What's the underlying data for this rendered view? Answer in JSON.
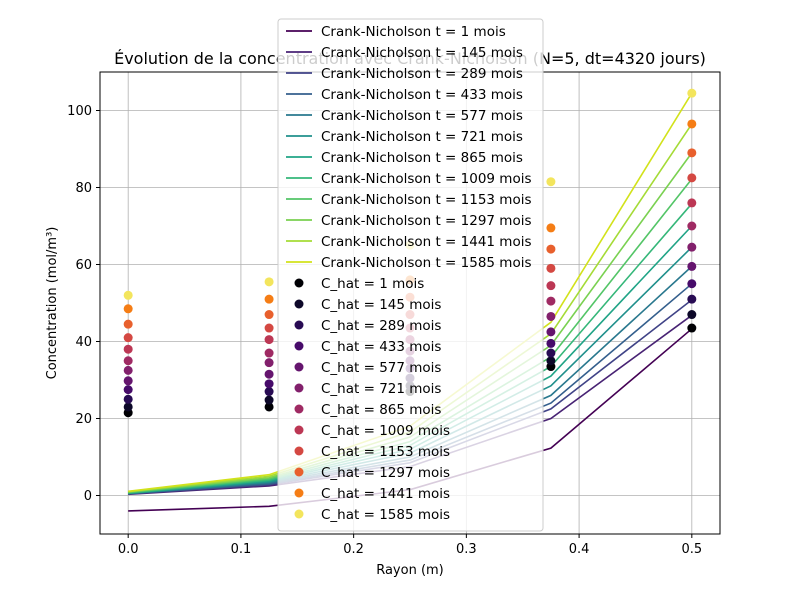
{
  "chart_data": {
    "type": "line",
    "title": "Évolution de la concentration avec Crank-Nicholson (N=5, dt=4320 jours)",
    "xlabel": "Rayon (m)",
    "ylabel": "Concentration (mol/m³)",
    "xlim": [
      -0.025,
      0.525
    ],
    "ylim": [
      -10,
      110
    ],
    "xticks": [
      0.0,
      0.1,
      0.2,
      0.3,
      0.4,
      0.5
    ],
    "xtick_labels": [
      "0.0",
      "0.1",
      "0.2",
      "0.3",
      "0.4",
      "0.5"
    ],
    "yticks": [
      0,
      20,
      40,
      60,
      80,
      100
    ],
    "ytick_labels": [
      "0",
      "20",
      "40",
      "60",
      "80",
      "100"
    ],
    "grid": true,
    "legend_position": "top-center (overlapping plot)",
    "x": [
      0.0,
      0.125,
      0.25,
      0.375,
      0.5
    ],
    "line_series": [
      {
        "name": "Crank-Nicholson t = 1 mois",
        "color": "#440154",
        "values": [
          -4.0,
          -2.8,
          1.5,
          12.3,
          43.3
        ]
      },
      {
        "name": "Crank-Nicholson t = 145 mois",
        "color": "#482374",
        "values": [
          0.3,
          2.5,
          7.5,
          20.0,
          46.8
        ]
      },
      {
        "name": "Crank-Nicholson t = 289 mois",
        "color": "#404387",
        "values": [
          0.4,
          2.8,
          8.5,
          22.5,
          50.8
        ]
      },
      {
        "name": "Crank-Nicholson t = 433 mois",
        "color": "#345f8d",
        "values": [
          0.5,
          3.0,
          9.2,
          24.0,
          55.0
        ]
      },
      {
        "name": "Crank-Nicholson t = 577 mois",
        "color": "#29788e",
        "values": [
          0.5,
          3.3,
          10.0,
          26.0,
          59.5
        ]
      },
      {
        "name": "Crank-Nicholson t = 721 mois",
        "color": "#20908c",
        "values": [
          0.6,
          3.5,
          11.0,
          28.5,
          64.5
        ]
      },
      {
        "name": "Crank-Nicholson t = 865 mois",
        "color": "#20a486",
        "values": [
          0.6,
          3.8,
          12.0,
          31.0,
          70.0
        ]
      },
      {
        "name": "Crank-Nicholson t = 1009 mois",
        "color": "#35b779",
        "values": [
          0.7,
          4.0,
          13.0,
          33.5,
          75.8
        ]
      },
      {
        "name": "Crank-Nicholson t = 1153 mois",
        "color": "#53c567",
        "values": [
          0.8,
          4.3,
          14.0,
          36.0,
          82.2
        ]
      },
      {
        "name": "Crank-Nicholson t = 1297 mois",
        "color": "#7ad151",
        "values": [
          0.9,
          4.6,
          15.2,
          39.0,
          89.0
        ]
      },
      {
        "name": "Crank-Nicholson t = 1441 mois",
        "color": "#a5db36",
        "values": [
          1.0,
          5.0,
          16.5,
          42.0,
          96.5
        ]
      },
      {
        "name": "Crank-Nicholson t = 1585 mois",
        "color": "#d2e21b",
        "values": [
          1.1,
          5.4,
          18.0,
          45.0,
          104.5
        ]
      }
    ],
    "scatter_series": [
      {
        "name": "C_hat = 1 mois",
        "color": "#000004",
        "values": [
          21.5,
          23.0,
          27.0,
          33.5,
          43.5
        ]
      },
      {
        "name": "C_hat = 145 mois",
        "color": "#0d0829",
        "values": [
          23.0,
          24.8,
          28.5,
          35.0,
          47.0
        ]
      },
      {
        "name": "C_hat = 289 mois",
        "color": "#280b53",
        "values": [
          25.0,
          27.0,
          30.5,
          37.0,
          51.0
        ]
      },
      {
        "name": "C_hat = 433 mois",
        "color": "#470b6a",
        "values": [
          27.5,
          29.0,
          33.0,
          39.5,
          55.0
        ]
      },
      {
        "name": "C_hat = 577 mois",
        "color": "#65156e",
        "values": [
          29.8,
          31.5,
          35.0,
          42.5,
          59.5
        ]
      },
      {
        "name": "C_hat = 721 mois",
        "color": "#82206c",
        "values": [
          32.5,
          34.5,
          37.5,
          46.5,
          64.5
        ]
      },
      {
        "name": "C_hat = 865 mois",
        "color": "#9f2a63",
        "values": [
          35.0,
          37.0,
          40.5,
          50.5,
          70.0
        ]
      },
      {
        "name": "C_hat = 1009 mois",
        "color": "#bc3754",
        "values": [
          38.0,
          40.5,
          43.5,
          54.5,
          76.0
        ]
      },
      {
        "name": "C_hat = 1153 mois",
        "color": "#d44842",
        "values": [
          41.0,
          43.5,
          47.0,
          59.0,
          82.5
        ]
      },
      {
        "name": "C_hat = 1297 mois",
        "color": "#e8602d",
        "values": [
          44.5,
          47.0,
          51.5,
          64.0,
          89.0
        ]
      },
      {
        "name": "C_hat = 1441 mois",
        "color": "#f57d15",
        "values": [
          48.5,
          51.0,
          56.0,
          69.5,
          96.5
        ]
      },
      {
        "name": "C_hat = 1585 mois",
        "color": "#f3e55d",
        "values": [
          52.0,
          55.5,
          65.0,
          81.5,
          104.5
        ]
      }
    ]
  }
}
